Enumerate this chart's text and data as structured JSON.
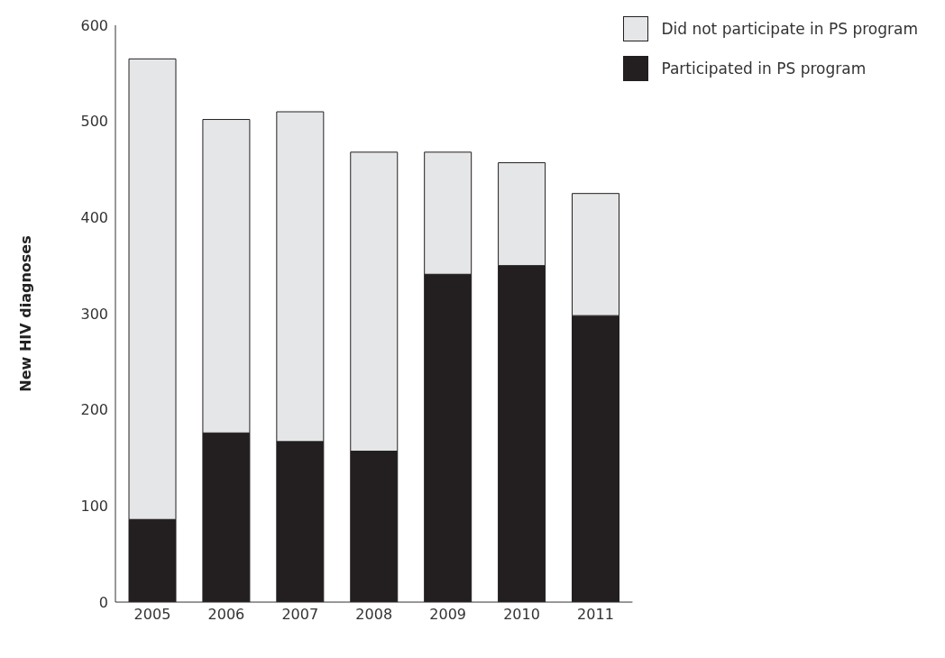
{
  "chart_data": {
    "type": "bar",
    "stacked": true,
    "ylabel": "New HIV diagnoses",
    "categories": [
      "2005",
      "2006",
      "2007",
      "2008",
      "2009",
      "2010",
      "2011"
    ],
    "series": [
      {
        "name": "Participated in PS program",
        "color": "#231f20",
        "values": [
          86,
          176,
          167,
          157,
          341,
          350,
          298
        ]
      },
      {
        "name": "Did not participate in PS program",
        "color": "#e5e6e7",
        "values": [
          479,
          326,
          343,
          311,
          127,
          107,
          127
        ]
      }
    ],
    "ylim": [
      0,
      600
    ],
    "yticks": [
      0,
      100,
      200,
      300,
      400,
      500,
      600
    ],
    "grid": false,
    "legend": "top right"
  }
}
